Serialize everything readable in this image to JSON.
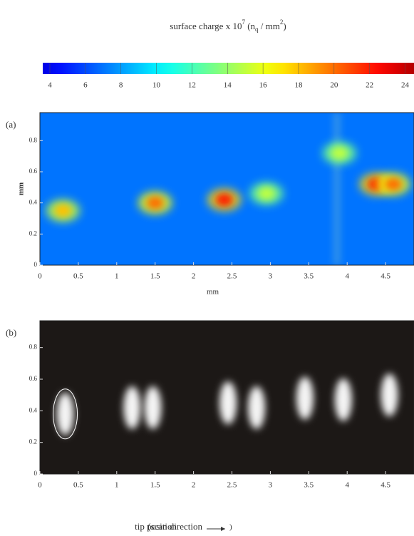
{
  "colorbar": {
    "label_parts": [
      "surface charge  x 10",
      "7",
      " (n",
      "q",
      " / mm",
      "2",
      ")"
    ],
    "clim": [
      3.6,
      24.5
    ],
    "ticks": [
      4,
      6,
      8,
      10,
      12,
      14,
      16,
      18,
      20,
      22,
      24
    ]
  },
  "chart_data": [
    {
      "type": "heatmap",
      "panel_label": "(a)",
      "xlabel": "mm",
      "ylabel": "mm",
      "xlim": [
        0,
        4.87
      ],
      "ylim": [
        0,
        0.98
      ],
      "xticks": [
        0,
        0.5,
        1,
        1.5,
        2,
        2.5,
        3,
        3.5,
        4,
        4.5
      ],
      "yticks": [
        0,
        0.2,
        0.4,
        0.6,
        0.8
      ],
      "background_value": 7,
      "spots": {
        "x": [
          0.3,
          1.5,
          2.4,
          2.95,
          3.9,
          4.38,
          4.6
        ],
        "y": [
          0.35,
          0.4,
          0.42,
          0.46,
          0.72,
          0.52,
          0.52
        ],
        "values": [
          18,
          20,
          22,
          15,
          15,
          22,
          20
        ]
      }
    },
    {
      "type": "image",
      "panel_label": "(b)",
      "xlabel_parts": [
        "tip position",
        "(scan direction"
      ],
      "xlim": [
        0,
        4.87
      ],
      "ylim": [
        0,
        0.97
      ],
      "xticks": [
        0,
        0.5,
        1,
        1.5,
        2,
        2.5,
        3,
        3.5,
        4,
        4.5
      ],
      "yticks": [
        0,
        0.2,
        0.4,
        0.6,
        0.8
      ],
      "spots": {
        "x": [
          0.33,
          1.2,
          1.47,
          2.45,
          2.82,
          3.45,
          3.95,
          4.55
        ],
        "y": [
          0.38,
          0.42,
          0.42,
          0.45,
          0.42,
          0.48,
          0.47,
          0.5
        ]
      }
    }
  ]
}
